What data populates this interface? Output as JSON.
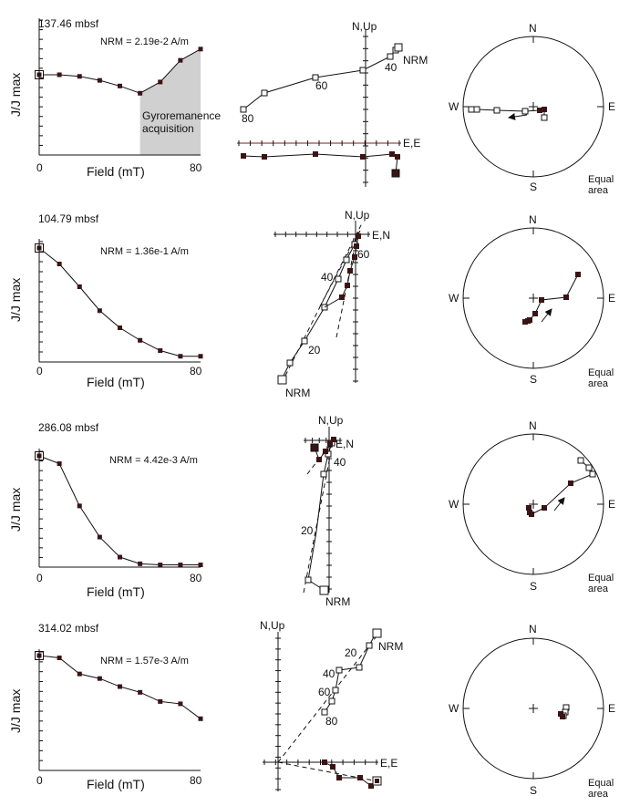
{
  "common": {
    "ylabel": "J/J max",
    "xlabel": "Field  (mT)",
    "x_start": "0",
    "x_end": "80",
    "equal_area_line1": "Equal",
    "equal_area_line2": "area",
    "N": "N",
    "S": "S",
    "E": "E",
    "W": "W"
  },
  "colors": {
    "filled": "#3a1414",
    "shade": "#d0d0d0",
    "line": "#111111",
    "axis_red": "#7a2020"
  },
  "chart_data": [
    {
      "type": "line",
      "title": "137.46 mbsf",
      "nrm": "NRM = 2.19e-2 A/m",
      "annotation": [
        "Gyroremanence",
        "acquisition"
      ],
      "x": [
        0,
        10,
        20,
        30,
        40,
        50,
        60,
        70,
        80
      ],
      "y": [
        1.0,
        1.0,
        0.98,
        0.93,
        0.86,
        0.77,
        0.91,
        1.18,
        1.32
      ],
      "shade_from": 50,
      "zij": {
        "vertical_label": "N,Up",
        "horizontal_label": "E,E",
        "step_labels": [
          "80",
          "60",
          "40",
          "NRM"
        ]
      }
    },
    {
      "type": "line",
      "title": "104.79 mbsf",
      "nrm": "NRM = 1.36e-1 A/m",
      "x": [
        0,
        10,
        20,
        30,
        40,
        50,
        60,
        70,
        80
      ],
      "y": [
        1.0,
        0.86,
        0.66,
        0.45,
        0.3,
        0.19,
        0.1,
        0.05,
        0.05
      ],
      "zij": {
        "vertical_label": "N,Up",
        "horizontal_label": "E,N",
        "step_labels": [
          "60",
          "40",
          "20",
          "NRM"
        ]
      }
    },
    {
      "type": "line",
      "title": "286.08 mbsf",
      "nrm": "NRM = 4.42e-3 A/m",
      "x": [
        0,
        10,
        20,
        30,
        40,
        50,
        60,
        70,
        80
      ],
      "y": [
        1.0,
        0.93,
        0.55,
        0.27,
        0.09,
        0.03,
        0.02,
        0.02,
        0.02
      ],
      "zij": {
        "vertical_label": "N,Up",
        "horizontal_label": "E,N",
        "step_labels": [
          "40",
          "20",
          "NRM"
        ]
      }
    },
    {
      "type": "line",
      "title": "314.02 mbsf",
      "nrm": "NRM = 1.57e-3 A/m",
      "x": [
        0,
        10,
        20,
        30,
        40,
        50,
        60,
        70,
        80
      ],
      "y": [
        1.0,
        0.98,
        0.84,
        0.8,
        0.73,
        0.68,
        0.6,
        0.58,
        0.45
      ],
      "zij": {
        "vertical_label": "N,Up",
        "horizontal_label": "E,E",
        "step_labels": [
          "20",
          "NRM",
          "40",
          "60",
          "80"
        ]
      }
    }
  ]
}
